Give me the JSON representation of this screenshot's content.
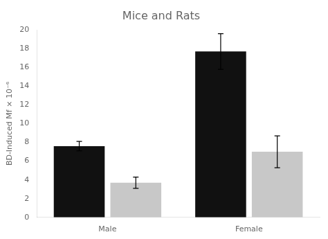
{
  "chart_data": {
    "type": "bar",
    "title": "Mice and Rats",
    "ylabel": "BD-Induced Mf × 10⁻⁶",
    "categories": [
      "Male",
      "Female"
    ],
    "series": [
      {
        "color": "#111111",
        "values": [
          7.6,
          17.7
        ],
        "errors": [
          0.5,
          1.9
        ]
      },
      {
        "color": "#c8c8c8",
        "values": [
          3.7,
          7.0
        ],
        "errors": [
          0.6,
          1.7
        ]
      }
    ],
    "ylim": [
      0,
      20
    ],
    "yticks": [
      0,
      2,
      4,
      6,
      8,
      10,
      12,
      14,
      16,
      18,
      20
    ],
    "grid": false
  }
}
